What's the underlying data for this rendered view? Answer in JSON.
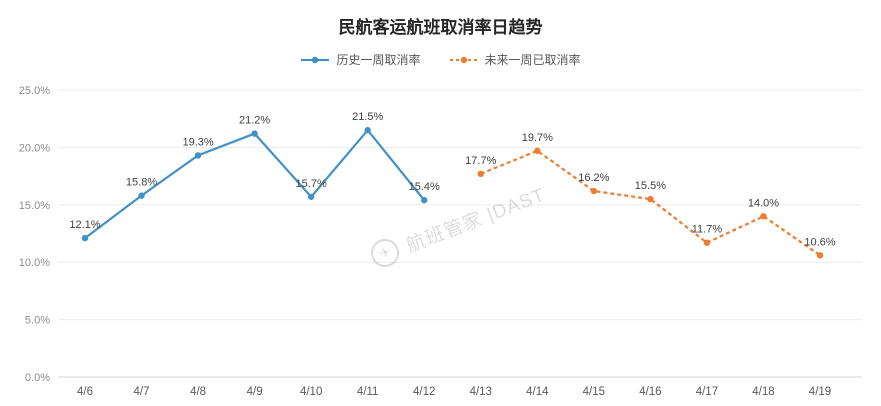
{
  "watermark": {
    "text": "航班管家 |DAST",
    "logo": "plane-icon"
  },
  "chart_data": {
    "type": "line",
    "title": "民航客运航班取消率日趋势",
    "categories": [
      "4/6",
      "4/7",
      "4/8",
      "4/9",
      "4/10",
      "4/11",
      "4/12",
      "4/13",
      "4/14",
      "4/15",
      "4/16",
      "4/17",
      "4/18",
      "4/19"
    ],
    "series": [
      {
        "name": "历史一周取消率",
        "color": "#4191C9",
        "style": "solid",
        "values": [
          12.1,
          15.8,
          19.3,
          21.2,
          15.7,
          21.5,
          15.4,
          null,
          null,
          null,
          null,
          null,
          null,
          null
        ]
      },
      {
        "name": "未来一周已取消率",
        "color": "#ED7D31",
        "style": "dashed",
        "values": [
          null,
          null,
          null,
          null,
          null,
          null,
          null,
          17.7,
          19.7,
          16.2,
          15.5,
          11.7,
          14.0,
          10.6
        ]
      }
    ],
    "ylim": [
      0,
      25
    ],
    "ytick_labels": [
      "0.0%",
      "5.0%",
      "10.0%",
      "15.0%",
      "20.0%",
      "25.0%"
    ],
    "xlabel": "",
    "ylabel": "",
    "grid": true,
    "legend_position": "top",
    "data_labels": true,
    "label_format": "{value}%"
  }
}
